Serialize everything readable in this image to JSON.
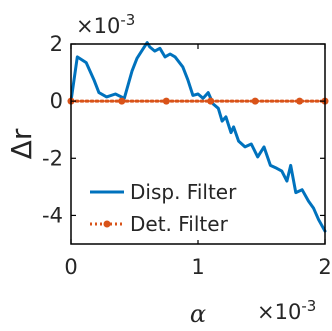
{
  "chart_data": {
    "type": "line",
    "xlabel": "α",
    "ylabel": "Δr",
    "x_multiplier": "×10",
    "x_exponent": "-3",
    "y_multiplier": "×10",
    "y_exponent": "-3",
    "xlim": [
      0,
      2
    ],
    "ylim": [
      -5,
      2
    ],
    "xticks": [
      0,
      1,
      2
    ],
    "xtick_labels": [
      "0",
      "1",
      "2"
    ],
    "yticks": [
      -4,
      -2,
      0,
      2
    ],
    "ytick_labels": [
      "-4",
      "-2",
      "0",
      "2"
    ],
    "grid": false,
    "legend_position": "bottom-left",
    "series": [
      {
        "name": "Disp. Filter",
        "color": "#0072BD",
        "style": "solid",
        "x": [
          0,
          0.05,
          0.12,
          0.18,
          0.22,
          0.28,
          0.35,
          0.42,
          0.48,
          0.52,
          0.57,
          0.6,
          0.62,
          0.66,
          0.7,
          0.74,
          0.78,
          0.82,
          0.88,
          0.92,
          0.96,
          1.0,
          1.04,
          1.08,
          1.12,
          1.16,
          1.19,
          1.22,
          1.26,
          1.28,
          1.32,
          1.37,
          1.42,
          1.47,
          1.52,
          1.57,
          1.62,
          1.66,
          1.7,
          1.73,
          1.77,
          1.82,
          1.87,
          1.91,
          1.95,
          2.0
        ],
        "y": [
          0,
          1.55,
          1.35,
          0.75,
          0.3,
          0.15,
          0.25,
          0.1,
          1.05,
          1.5,
          1.85,
          2.05,
          1.9,
          1.75,
          1.85,
          1.55,
          1.65,
          1.55,
          1.2,
          0.75,
          0.2,
          0.25,
          0.1,
          0.3,
          -0.1,
          -0.25,
          -0.7,
          -0.55,
          -1.1,
          -0.9,
          -1.4,
          -1.6,
          -1.5,
          -1.95,
          -1.6,
          -2.25,
          -2.35,
          -2.45,
          -2.8,
          -2.25,
          -3.2,
          -3.1,
          -3.5,
          -3.75,
          -4.15,
          -4.55
        ]
      },
      {
        "name": "Det. Filter",
        "color": "#D95319",
        "style": "dotted",
        "marker": "circle",
        "x": [
          0,
          0.35,
          0.7,
          1.05,
          1.4,
          1.75,
          2.0
        ],
        "y": [
          0,
          0,
          0,
          0,
          0,
          0,
          0
        ],
        "x_markers": [
          0,
          0.4,
          0.75,
          1.1,
          1.45,
          1.8,
          2.0
        ]
      }
    ]
  }
}
